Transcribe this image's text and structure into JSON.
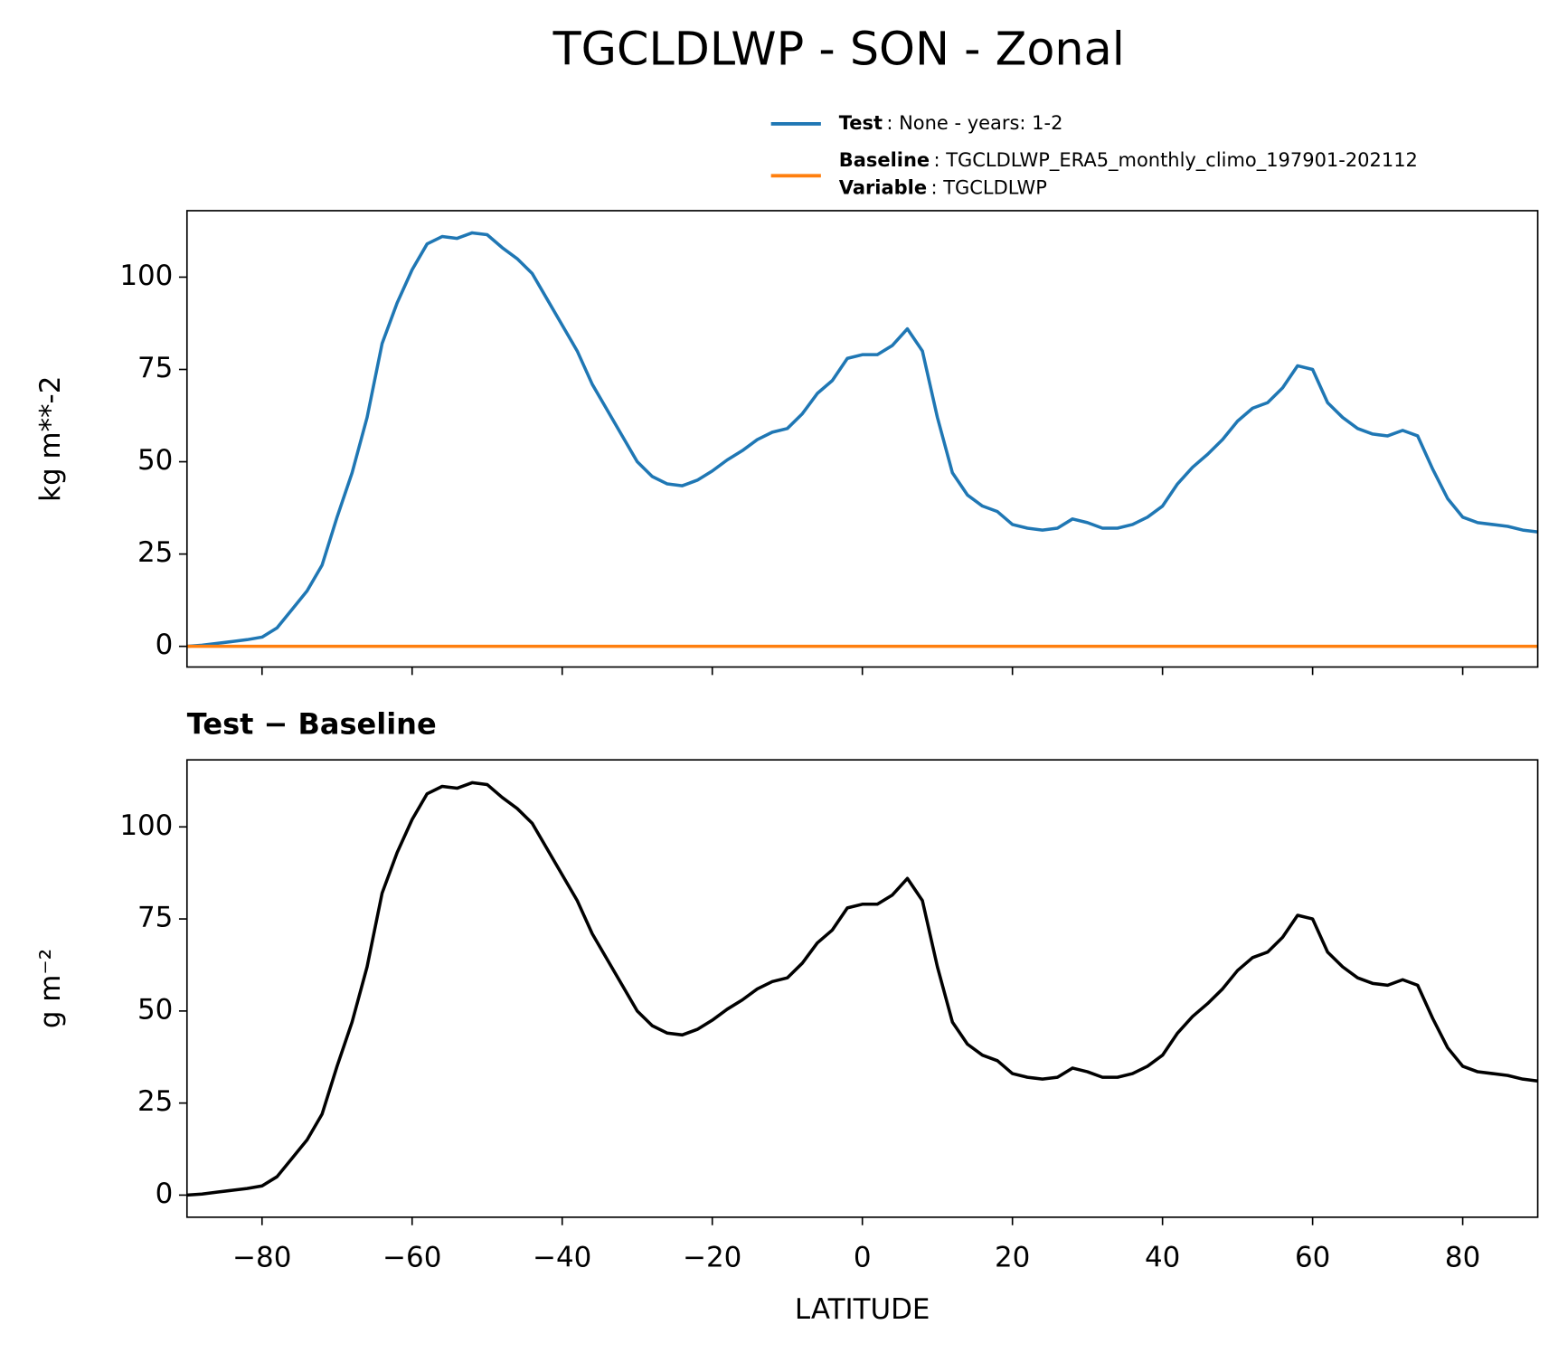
{
  "chart_data": [
    {
      "type": "line",
      "title": "TGCLDLWP - SON - Zonal",
      "ylabel": "kg m**-2",
      "x": [
        -90,
        -88,
        -86,
        -84,
        -82,
        -80,
        -78,
        -76,
        -74,
        -72,
        -70,
        -68,
        -66,
        -64,
        -62,
        -60,
        -58,
        -56,
        -54,
        -52,
        -50,
        -48,
        -46,
        -44,
        -42,
        -40,
        -38,
        -36,
        -34,
        -32,
        -30,
        -28,
        -26,
        -24,
        -22,
        -20,
        -18,
        -16,
        -14,
        -12,
        -10,
        -8,
        -6,
        -4,
        -2,
        0,
        2,
        4,
        6,
        8,
        10,
        12,
        14,
        16,
        18,
        20,
        22,
        24,
        26,
        28,
        30,
        32,
        34,
        36,
        38,
        40,
        42,
        44,
        46,
        48,
        50,
        52,
        54,
        56,
        58,
        60,
        62,
        64,
        66,
        68,
        70,
        72,
        74,
        76,
        78,
        80,
        82,
        84,
        86,
        88,
        90
      ],
      "series": [
        {
          "name": "Test",
          "detail": ": None - years: 1-2",
          "color": "#1f77b4",
          "values": [
            0,
            0.3,
            0.8,
            1.3,
            1.8,
            2.5,
            5,
            10,
            15,
            22,
            35,
            47,
            62,
            82,
            93,
            102,
            109,
            111,
            110.5,
            112,
            111.5,
            108,
            105,
            101,
            94,
            87,
            80,
            71,
            64,
            57,
            50,
            46,
            44,
            43.5,
            45,
            47.5,
            50.5,
            53,
            56,
            58,
            59,
            63,
            68.5,
            72,
            78,
            79,
            79,
            81.5,
            86,
            80,
            62,
            47,
            41,
            38,
            36.5,
            33,
            32,
            31.5,
            32,
            34.5,
            33.5,
            32,
            32,
            33,
            35,
            38,
            44,
            48.5,
            52,
            56,
            61,
            64.5,
            66,
            70,
            76,
            75,
            66,
            62,
            59,
            57.5,
            57,
            58.5,
            57,
            48,
            40,
            35,
            33.5,
            33,
            32.5,
            31.5,
            31
          ]
        },
        {
          "name": "Baseline",
          "detail": ": TGCLDLWP_ERA5_monthly_climo_197901-202112",
          "color": "#ff7f0e",
          "values": [
            0,
            0,
            0,
            0,
            0,
            0,
            0,
            0,
            0,
            0,
            0,
            0,
            0,
            0,
            0,
            0,
            0,
            0,
            0,
            0,
            0,
            0,
            0,
            0,
            0,
            0,
            0,
            0,
            0,
            0,
            0,
            0,
            0,
            0,
            0,
            0,
            0,
            0,
            0,
            0,
            0,
            0,
            0,
            0,
            0,
            0,
            0,
            0,
            0,
            0,
            0,
            0,
            0,
            0,
            0,
            0,
            0,
            0,
            0,
            0,
            0,
            0,
            0,
            0,
            0,
            0,
            0,
            0,
            0,
            0,
            0,
            0,
            0,
            0,
            0,
            0,
            0,
            0,
            0,
            0,
            0,
            0,
            0,
            0,
            0,
            0,
            0,
            0,
            0,
            0,
            0
          ]
        }
      ],
      "legend_note": {
        "name": "Variable",
        "detail": ": TGCLDLWP"
      },
      "xlim": [
        -90,
        90
      ],
      "xticks": [
        {
          "value": -80,
          "label": "−80"
        },
        {
          "value": -60,
          "label": "−60"
        },
        {
          "value": -40,
          "label": "−40"
        },
        {
          "value": -20,
          "label": "−20"
        },
        0,
        20,
        40,
        60,
        80
      ],
      "ylim": [
        -5.6,
        118
      ],
      "yticks": [
        0,
        25,
        50,
        75,
        100
      ]
    },
    {
      "type": "line",
      "title": "Test − Baseline",
      "ylabel": "g m⁻²",
      "xlabel": "LATITUDE",
      "x": [
        -90,
        -88,
        -86,
        -84,
        -82,
        -80,
        -78,
        -76,
        -74,
        -72,
        -70,
        -68,
        -66,
        -64,
        -62,
        -60,
        -58,
        -56,
        -54,
        -52,
        -50,
        -48,
        -46,
        -44,
        -42,
        -40,
        -38,
        -36,
        -34,
        -32,
        -30,
        -28,
        -26,
        -24,
        -22,
        -20,
        -18,
        -16,
        -14,
        -12,
        -10,
        -8,
        -6,
        -4,
        -2,
        0,
        2,
        4,
        6,
        8,
        10,
        12,
        14,
        16,
        18,
        20,
        22,
        24,
        26,
        28,
        30,
        32,
        34,
        36,
        38,
        40,
        42,
        44,
        46,
        48,
        50,
        52,
        54,
        56,
        58,
        60,
        62,
        64,
        66,
        68,
        70,
        72,
        74,
        76,
        78,
        80,
        82,
        84,
        86,
        88,
        90
      ],
      "series": [
        {
          "color": "#000000",
          "values": [
            0,
            0.3,
            0.8,
            1.3,
            1.8,
            2.5,
            5,
            10,
            15,
            22,
            35,
            47,
            62,
            82,
            93,
            102,
            109,
            111,
            110.5,
            112,
            111.5,
            108,
            105,
            101,
            94,
            87,
            80,
            71,
            64,
            57,
            50,
            46,
            44,
            43.5,
            45,
            47.5,
            50.5,
            53,
            56,
            58,
            59,
            63,
            68.5,
            72,
            78,
            79,
            79,
            81.5,
            86,
            80,
            62,
            47,
            41,
            38,
            36.5,
            33,
            32,
            31.5,
            32,
            34.5,
            33.5,
            32,
            32,
            33,
            35,
            38,
            44,
            48.5,
            52,
            56,
            61,
            64.5,
            66,
            70,
            76,
            75,
            66,
            62,
            59,
            57.5,
            57,
            58.5,
            57,
            48,
            40,
            35,
            33.5,
            33,
            32.5,
            31.5,
            31
          ]
        }
      ],
      "xlim": [
        -90,
        90
      ],
      "xticks": [
        {
          "value": -80,
          "label": "−80"
        },
        {
          "value": -60,
          "label": "−60"
        },
        {
          "value": -40,
          "label": "−40"
        },
        {
          "value": -20,
          "label": "−20"
        },
        0,
        20,
        40,
        60,
        80
      ],
      "ylim": [
        -6,
        118.2
      ],
      "yticks": [
        0,
        25,
        50,
        75,
        100
      ]
    }
  ]
}
